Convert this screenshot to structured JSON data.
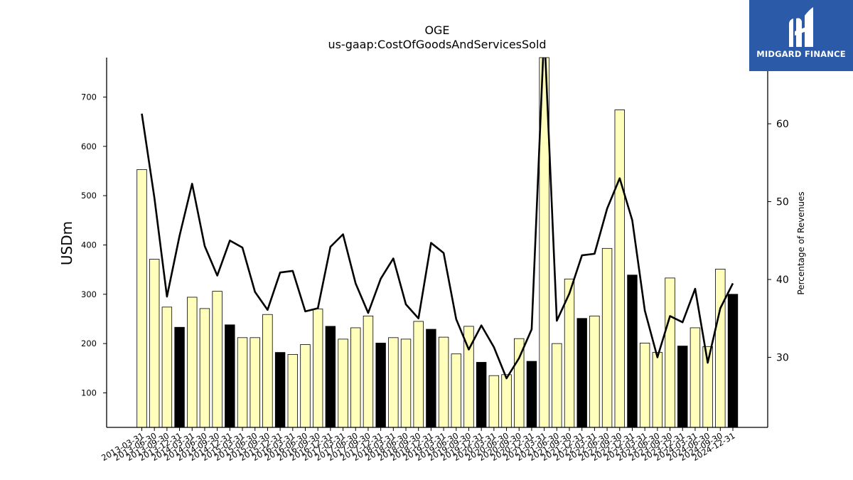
{
  "chart_data": {
    "type": "bar",
    "title": "OGE",
    "subtitle": "us-gaap:CostOfGoodsAndServicesSold",
    "ylabel": "USDm",
    "ylabel_right": "Percentage of Revenues",
    "ylim": [
      30,
      780
    ],
    "ylim_right": [
      21,
      68.5
    ],
    "yticks": [
      100,
      200,
      300,
      400,
      500,
      600,
      700
    ],
    "yticks_right": [
      30,
      40,
      50,
      60
    ],
    "grid": false,
    "categories": [
      "2013-03-31",
      "2013-06-30",
      "2013-09-30",
      "2013-12-31",
      "2014-03-31",
      "2014-06-30",
      "2014-09-30",
      "2014-12-31",
      "2015-03-31",
      "2015-06-30",
      "2015-09-30",
      "2015-12-31",
      "2016-03-31",
      "2016-06-30",
      "2016-09-30",
      "2016-12-31",
      "2017-03-31",
      "2017-06-30",
      "2017-09-30",
      "2017-12-31",
      "2018-03-31",
      "2018-06-30",
      "2018-09-30",
      "2018-12-31",
      "2019-03-31",
      "2019-06-30",
      "2019-09-30",
      "2019-12-31",
      "2020-03-31",
      "2020-06-30",
      "2020-09-30",
      "2020-12-31",
      "2021-03-31",
      "2021-06-30",
      "2021-09-30",
      "2021-12-31",
      "2022-03-31",
      "2022-06-30",
      "2022-09-30",
      "2022-12-31",
      "2023-03-31",
      "2023-06-30",
      "2023-09-30",
      "2023-12-31",
      "2024-03-31",
      "2024-06-30",
      "2024-09-30",
      "2024-12-31"
    ],
    "series": [
      {
        "kind": "bar",
        "values": [
          553,
          371,
          274,
          233,
          294,
          271,
          306,
          238,
          212,
          212,
          259,
          182,
          178,
          198,
          270,
          235,
          209,
          232,
          256,
          201,
          212,
          209,
          245,
          229,
          213,
          179,
          235,
          162,
          135,
          137,
          210,
          164,
          790,
          200,
          331,
          251,
          256,
          393,
          674,
          339,
          201,
          182,
          333,
          195,
          232,
          194,
          351,
          300
        ],
        "fill": [
          "#ffffbb",
          "#ffffbb",
          "#ffffbb",
          "#000000",
          "#ffffbb",
          "#ffffbb",
          "#ffffbb",
          "#000000",
          "#ffffbb",
          "#ffffbb",
          "#ffffbb",
          "#000000",
          "#ffffbb",
          "#ffffbb",
          "#ffffbb",
          "#000000",
          "#ffffbb",
          "#ffffbb",
          "#ffffbb",
          "#000000",
          "#ffffbb",
          "#ffffbb",
          "#ffffbb",
          "#000000",
          "#ffffbb",
          "#ffffbb",
          "#ffffbb",
          "#000000",
          "#ffffbb",
          "#ffffbb",
          "#ffffbb",
          "#000000",
          "#ffffbb",
          "#ffffbb",
          "#ffffbb",
          "#000000",
          "#ffffbb",
          "#ffffbb",
          "#ffffbb",
          "#000000",
          "#ffffbb",
          "#ffffbb",
          "#ffffbb",
          "#000000",
          "#ffffbb",
          "#ffffbb",
          "#ffffbb",
          "#000000"
        ]
      },
      {
        "kind": "line",
        "axis": "right",
        "color": "#000000",
        "values": [
          61.3,
          50.5,
          37.8,
          45.6,
          52.3,
          44.3,
          40.5,
          45.0,
          44.1,
          38.4,
          36.1,
          40.9,
          41.1,
          35.9,
          36.3,
          44.2,
          45.8,
          39.5,
          35.7,
          40.1,
          42.7,
          36.8,
          35.0,
          44.7,
          43.4,
          34.9,
          31.0,
          34.1,
          31.3,
          27.3,
          29.9,
          33.6,
          72.0,
          34.7,
          38.2,
          43.1,
          43.3,
          49.1,
          53.0,
          47.6,
          36.0,
          30.0,
          35.3,
          34.5,
          38.8,
          29.3,
          36.3,
          39.5
        ]
      }
    ]
  },
  "logo": {
    "text": "MIDGARD FINANCE",
    "bg_color": "#2b5aa8"
  }
}
